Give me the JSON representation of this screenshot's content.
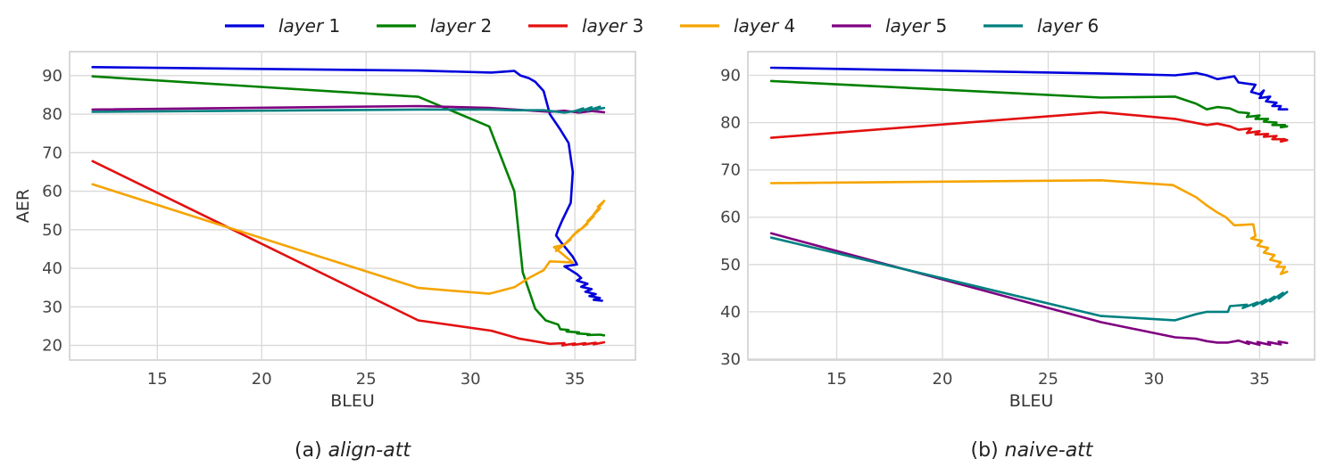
{
  "legend": {
    "items": [
      {
        "name": "layer",
        "num": "1",
        "color": "#0000dd"
      },
      {
        "name": "layer",
        "num": "2",
        "color": "#008000"
      },
      {
        "name": "layer",
        "num": "3",
        "color": "#e31010"
      },
      {
        "name": "layer",
        "num": "4",
        "color": "#f5a400"
      },
      {
        "name": "layer",
        "num": "5",
        "color": "#800080"
      },
      {
        "name": "layer",
        "num": "6",
        "color": "#008080"
      }
    ]
  },
  "chart_data": [
    {
      "type": "line",
      "caption_prefix": "(a) ",
      "caption_name": "align-att",
      "xlabel": "BLEU",
      "ylabel": "AER",
      "xlim": [
        10.8,
        37.9
      ],
      "ylim": [
        16.2,
        96.2
      ],
      "xticks": [
        15,
        20,
        25,
        30,
        35
      ],
      "yticks": [
        20,
        30,
        40,
        50,
        60,
        70,
        80,
        90
      ],
      "grid": true,
      "series": [
        {
          "name": "layer 1",
          "color": "#0000dd",
          "x": [
            11.9,
            27.5,
            31.0,
            32.1,
            32.4,
            32.8,
            33.1,
            33.5,
            33.8,
            34.3,
            34.7,
            34.9,
            34.8,
            34.4,
            34.2,
            34.1,
            34.3,
            34.6,
            34.9,
            35.0,
            35.1,
            34.5,
            34.8,
            35.1,
            35.3,
            35.1,
            35.6,
            35.3,
            35.8,
            35.5,
            36.0,
            35.7,
            36.2,
            35.9,
            36.3
          ],
          "y": [
            92.2,
            91.3,
            90.8,
            91.2,
            90.0,
            89.3,
            88.4,
            86.0,
            80.0,
            76.0,
            72.5,
            65.0,
            57.0,
            52.5,
            50.0,
            48.5,
            47.0,
            45.0,
            43.0,
            42.0,
            41.0,
            40.5,
            39.5,
            38.5,
            37.5,
            36.8,
            36.0,
            35.2,
            34.6,
            33.9,
            33.3,
            32.8,
            32.3,
            31.8,
            31.6
          ]
        },
        {
          "name": "layer 2",
          "color": "#008000",
          "x": [
            11.9,
            27.5,
            30.9,
            32.1,
            32.5,
            33.1,
            33.6,
            34.2,
            34.3,
            34.7,
            34.6,
            35.2,
            35.1,
            35.7,
            35.6,
            36.2,
            36.4
          ],
          "y": [
            89.8,
            84.5,
            76.8,
            60.0,
            39.0,
            29.5,
            26.5,
            25.4,
            24.2,
            24.0,
            23.6,
            23.4,
            23.1,
            22.9,
            22.7,
            22.8,
            22.6
          ]
        },
        {
          "name": "layer 3",
          "color": "#e31010",
          "x": [
            11.9,
            27.5,
            31.0,
            32.3,
            33.8,
            34.5,
            34.4,
            35.0,
            34.9,
            35.5,
            35.4,
            36.0,
            35.9,
            36.4
          ],
          "y": [
            67.8,
            26.5,
            23.8,
            21.8,
            20.4,
            20.6,
            20.0,
            20.5,
            20.1,
            20.6,
            20.2,
            20.7,
            20.3,
            20.8
          ]
        },
        {
          "name": "layer 4",
          "color": "#f5a400",
          "x": [
            11.9,
            27.5,
            30.9,
            32.1,
            32.8,
            33.5,
            33.8,
            34.2,
            34.9,
            34.0,
            34.4,
            34.1,
            34.8,
            34.5,
            35.2,
            34.9,
            35.6,
            35.3,
            35.9,
            35.6,
            36.2,
            35.9,
            36.4,
            36.1
          ],
          "y": [
            61.8,
            34.9,
            33.4,
            35.1,
            37.5,
            39.5,
            41.8,
            41.7,
            41.5,
            45.5,
            46.0,
            44.5,
            47.5,
            46.2,
            50.0,
            48.5,
            51.5,
            50.2,
            53.5,
            52.2,
            55.5,
            54.0,
            57.5,
            56.0
          ]
        },
        {
          "name": "layer 5",
          "color": "#800080",
          "x": [
            11.9,
            27.5,
            30.9,
            32.1,
            33.8,
            34.5,
            35.2,
            35.8,
            36.4
          ],
          "y": [
            81.2,
            82.1,
            81.6,
            81.2,
            80.6,
            80.9,
            80.4,
            80.8,
            80.5
          ]
        },
        {
          "name": "layer 6",
          "color": "#008080",
          "x": [
            11.9,
            27.5,
            30.9,
            32.1,
            33.5,
            34.5,
            35.0,
            35.4,
            35.2,
            35.8,
            35.6,
            36.2,
            36.0,
            36.4
          ],
          "y": [
            80.6,
            81.2,
            81.2,
            81.0,
            81.0,
            80.4,
            80.8,
            81.5,
            80.6,
            81.8,
            80.9,
            81.9,
            81.2,
            81.6
          ]
        }
      ]
    },
    {
      "type": "line",
      "caption_prefix": "(b) ",
      "caption_name": "naive-att",
      "xlabel": "BLEU",
      "ylabel": "",
      "xlim": [
        10.8,
        37.6
      ],
      "ylim": [
        29.8,
        95.0
      ],
      "xticks": [
        15,
        20,
        25,
        30,
        35
      ],
      "yticks": [
        30,
        40,
        50,
        60,
        70,
        80,
        90
      ],
      "grid": true,
      "series": [
        {
          "name": "layer 1",
          "color": "#0000dd",
          "x": [
            11.9,
            27.5,
            31.0,
            32.0,
            32.5,
            33.0,
            33.4,
            33.8,
            34.0,
            34.8,
            34.6,
            35.0,
            35.2,
            35.0,
            35.5,
            35.3,
            35.8,
            35.6,
            36.0,
            35.9,
            36.3
          ],
          "y": [
            91.6,
            90.4,
            90.0,
            90.5,
            90.0,
            89.2,
            89.5,
            89.8,
            88.5,
            88.0,
            86.5,
            86.0,
            86.8,
            85.2,
            85.5,
            84.5,
            84.2,
            83.5,
            83.5,
            82.8,
            82.8
          ]
        },
        {
          "name": "layer 2",
          "color": "#008000",
          "x": [
            11.9,
            27.5,
            31.0,
            32.0,
            32.5,
            33.0,
            33.6,
            34.0,
            34.5,
            34.4,
            35.0,
            34.8,
            35.4,
            35.2,
            35.8,
            35.6,
            36.2,
            36.0,
            36.3
          ],
          "y": [
            88.8,
            85.3,
            85.5,
            84.0,
            82.8,
            83.3,
            83.0,
            82.2,
            82.0,
            81.2,
            81.5,
            80.8,
            80.8,
            80.2,
            80.0,
            79.5,
            79.5,
            79.0,
            79.2
          ]
        },
        {
          "name": "layer 3",
          "color": "#e31010",
          "x": [
            11.9,
            27.5,
            31.0,
            32.5,
            33.0,
            33.6,
            34.0,
            34.6,
            34.4,
            35.0,
            34.8,
            35.4,
            35.2,
            35.8,
            35.6,
            36.2,
            36.0,
            36.3
          ],
          "y": [
            76.8,
            82.2,
            80.8,
            79.5,
            79.8,
            79.2,
            78.5,
            78.8,
            77.8,
            78.2,
            77.5,
            77.6,
            77.0,
            77.2,
            76.5,
            76.5,
            76.0,
            76.3
          ]
        },
        {
          "name": "layer 4",
          "color": "#f5a400",
          "x": [
            11.9,
            27.5,
            30.9,
            32.0,
            32.5,
            33.0,
            33.4,
            33.8,
            34.7,
            34.8,
            34.6,
            35.1,
            34.9,
            35.4,
            35.2,
            35.7,
            35.5,
            36.0,
            35.8,
            36.2,
            36.0,
            36.3
          ],
          "y": [
            67.2,
            67.8,
            66.8,
            64.2,
            62.5,
            61.0,
            60.0,
            58.3,
            58.5,
            56.0,
            55.5,
            55.0,
            54.0,
            53.5,
            52.5,
            52.0,
            51.0,
            50.5,
            49.5,
            49.5,
            48.0,
            48.5
          ]
        },
        {
          "name": "layer 5",
          "color": "#800080",
          "x": [
            11.9,
            27.5,
            31.0,
            32.0,
            32.5,
            33.0,
            33.5,
            34.0,
            34.5,
            34.4,
            35.0,
            34.9,
            35.5,
            35.4,
            36.0,
            35.9,
            36.3
          ],
          "y": [
            56.6,
            37.8,
            34.6,
            34.3,
            33.8,
            33.5,
            33.5,
            33.9,
            33.2,
            33.7,
            33.0,
            33.6,
            33.0,
            33.6,
            33.1,
            33.7,
            33.4
          ]
        },
        {
          "name": "layer 6",
          "color": "#008080",
          "x": [
            11.9,
            27.5,
            31.0,
            32.0,
            32.5,
            33.5,
            33.6,
            34.4,
            34.2,
            34.9,
            34.7,
            35.3,
            35.1,
            35.7,
            35.5,
            36.1,
            35.9,
            36.3
          ],
          "y": [
            55.7,
            39.1,
            38.2,
            39.5,
            40.0,
            40.0,
            41.2,
            41.5,
            40.8,
            42.0,
            41.2,
            42.6,
            41.6,
            43.2,
            42.2,
            44.0,
            42.8,
            44.2
          ]
        }
      ]
    }
  ]
}
